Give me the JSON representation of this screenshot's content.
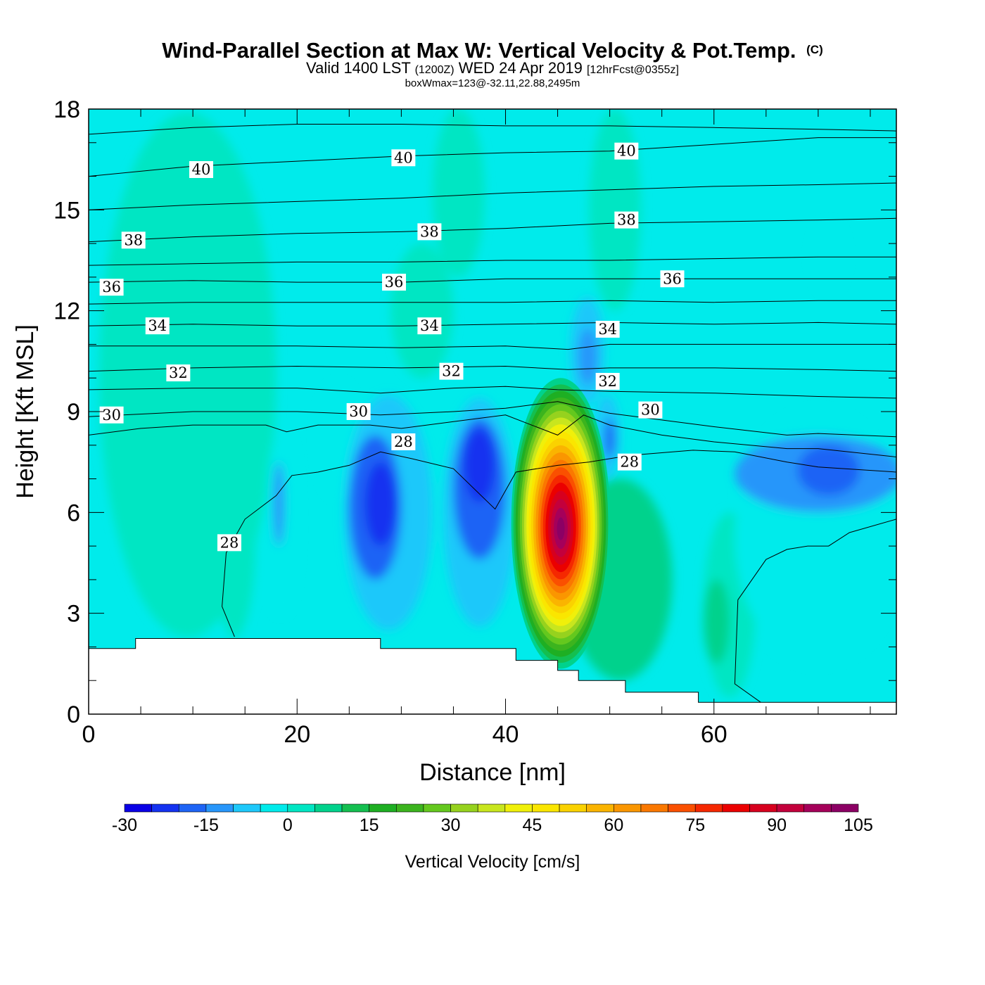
{
  "title": {
    "main": "Wind-Parallel Section at Max W: Vertical Velocity & Pot.Temp.",
    "copyright": "(C)",
    "valid_prefix": "Valid 1400 LST",
    "valid_utc": "(1200Z)",
    "valid_date": "WED 24 Apr 2019",
    "forecast": "[12hrFcst@0355z]",
    "box_wmax": "boxWmax=123@-32.11,22.88,2495m"
  },
  "chart_data": {
    "type": "heatmap",
    "xlabel": "Distance [nm]",
    "ylabel": "Height [Kft MSL]",
    "xlim": [
      0,
      77.5
    ],
    "ylim": [
      0,
      18
    ],
    "x_ticks": [
      0,
      20,
      40,
      60
    ],
    "y_ticks": [
      0,
      3,
      6,
      9,
      12,
      15,
      18
    ],
    "colorbar": {
      "label": "Vertical Velocity [cm/s]",
      "ticks": [
        -30,
        -15,
        0,
        15,
        30,
        45,
        60,
        75,
        90,
        105
      ],
      "levels": [
        -30,
        -25,
        -20,
        -15,
        -10,
        -5,
        0,
        5,
        10,
        15,
        20,
        25,
        30,
        35,
        40,
        45,
        50,
        55,
        60,
        65,
        70,
        75,
        80,
        85,
        90,
        95,
        100,
        105
      ],
      "colors": [
        "#0a00e6",
        "#1432f0",
        "#1e64f5",
        "#2896fa",
        "#1ec8fa",
        "#00ebeb",
        "#00e6c3",
        "#00d28c",
        "#14bf50",
        "#1eaf23",
        "#3cb41e",
        "#64c81e",
        "#96d21e",
        "#c8e61e",
        "#f0f00a",
        "#fae600",
        "#fad200",
        "#fab400",
        "#fa9600",
        "#fa7800",
        "#fa5000",
        "#f52800",
        "#eb0000",
        "#d7001e",
        "#c3003c",
        "#a5005a",
        "#8c0064"
      ]
    },
    "w_max": 123,
    "w_cells": [
      {
        "x": [
          1,
          18
        ],
        "y": [
          2.3,
          17.9
        ],
        "w": 3
      },
      {
        "x": [
          29,
          35
        ],
        "y": [
          10,
          14
        ],
        "w": 3
      },
      {
        "x": [
          33,
          38
        ],
        "y": [
          13,
          18
        ],
        "w": 3
      },
      {
        "x": [
          48,
          53
        ],
        "y": [
          12,
          18
        ],
        "w": 3
      },
      {
        "x": [
          12,
          16
        ],
        "y": [
          2.3,
          8
        ],
        "w": 2
      },
      {
        "x": [
          59,
          64
        ],
        "y": [
          0.5,
          6
        ],
        "w": 3
      },
      {
        "x": [
          59,
          61.5
        ],
        "y": [
          1.5,
          4
        ],
        "w": 6
      },
      {
        "x": [
          46,
          56
        ],
        "y": [
          1,
          7
        ],
        "w": 5
      },
      {
        "x": [
          48,
          52
        ],
        "y": [
          3,
          5.5
        ],
        "w": 9
      },
      {
        "x": [
          17,
          20
        ],
        "y": [
          3,
          8.5
        ],
        "w": -4
      },
      {
        "x": [
          17.7,
          18.8
        ],
        "y": [
          5,
          7.5
        ],
        "w": -11
      },
      {
        "x": [
          22,
          26
        ],
        "y": [
          6.5,
          9.8
        ],
        "w": -4
      },
      {
        "x": [
          24.5,
          33
        ],
        "y": [
          2.5,
          9.5
        ],
        "w": -10
      },
      {
        "x": [
          25,
          30
        ],
        "y": [
          4,
          8.3
        ],
        "w": -17
      },
      {
        "x": [
          26.5,
          29.5
        ],
        "y": [
          5,
          7.5
        ],
        "w": -25
      },
      {
        "x": [
          34,
          41
        ],
        "y": [
          2.6,
          9.4
        ],
        "w": -10
      },
      {
        "x": [
          35,
          40
        ],
        "y": [
          4.6,
          8.8
        ],
        "w": -17
      },
      {
        "x": [
          36,
          39
        ],
        "y": [
          6.3,
          8.5
        ],
        "w": -23
      },
      {
        "x": [
          46.2,
          49.5
        ],
        "y": [
          9.2,
          12.4
        ],
        "w": -8
      },
      {
        "x": [
          47,
          48.8
        ],
        "y": [
          9.8,
          11.5
        ],
        "w": -15
      },
      {
        "x": [
          48.5,
          51
        ],
        "y": [
          7,
          9.5
        ],
        "w": -10
      },
      {
        "x": [
          49.5,
          50.5
        ],
        "y": [
          7.6,
          8.8
        ],
        "w": -17
      },
      {
        "x": [
          62,
          78
        ],
        "y": [
          1.5,
          9
        ],
        "w": -5
      },
      {
        "x": [
          62,
          78
        ],
        "y": [
          6,
          8.3
        ],
        "w": -12
      },
      {
        "x": [
          68,
          74
        ],
        "y": [
          6.5,
          8
        ],
        "w": -18
      },
      {
        "x": [
          69.5,
          72.5
        ],
        "y": [
          12.6,
          14.6
        ],
        "w": -5
      },
      {
        "x": [
          41,
          50.5
        ],
        "y": [
          1.6,
          10
        ],
        "w": 123
      }
    ],
    "terrain_kft": [
      {
        "x": [
          0,
          4.5
        ],
        "top": 1.95
      },
      {
        "x": [
          4.5,
          28
        ],
        "top": 2.25
      },
      {
        "x": [
          28,
          41
        ],
        "top": 1.95
      },
      {
        "x": [
          41,
          45
        ],
        "top": 1.6
      },
      {
        "x": [
          45,
          47
        ],
        "top": 1.3
      },
      {
        "x": [
          47,
          51.5
        ],
        "top": 1.0
      },
      {
        "x": [
          51.5,
          58.5
        ],
        "top": 0.65
      },
      {
        "x": [
          58.5,
          77.5
        ],
        "top": 0.35
      }
    ],
    "theta_contours": [
      {
        "x": [
          0,
          10,
          20,
          30,
          40,
          50,
          60,
          70,
          77.5
        ],
        "y": [
          17.25,
          17.45,
          17.55,
          17.55,
          17.5,
          17.5,
          17.45,
          17.4,
          17.35
        ]
      },
      {
        "x": [
          0,
          10,
          20,
          30,
          40,
          50,
          60,
          70,
          77.5
        ],
        "y": [
          16.0,
          16.3,
          16.45,
          16.6,
          16.7,
          16.75,
          16.95,
          17.15,
          17.15
        ]
      },
      {
        "x": [
          0,
          10,
          20,
          30,
          40,
          50,
          60,
          70,
          77.5
        ],
        "y": [
          15.0,
          15.15,
          15.25,
          15.35,
          15.5,
          15.6,
          15.7,
          15.75,
          15.8
        ]
      },
      {
        "x": [
          0,
          10,
          20,
          30,
          40,
          50,
          60,
          70,
          77.5
        ],
        "y": [
          14.05,
          14.2,
          14.3,
          14.35,
          14.45,
          14.6,
          14.65,
          14.7,
          14.75
        ]
      },
      {
        "x": [
          0,
          10,
          20,
          30,
          40,
          50,
          60,
          70,
          77.5
        ],
        "y": [
          13.35,
          13.4,
          13.45,
          13.45,
          13.5,
          13.5,
          13.55,
          13.6,
          13.6
        ]
      },
      {
        "x": [
          0,
          10,
          20,
          30,
          40,
          50,
          60,
          70,
          77.5
        ],
        "y": [
          12.85,
          12.9,
          12.85,
          12.85,
          12.95,
          12.95,
          12.95,
          12.95,
          12.95
        ]
      },
      {
        "x": [
          0,
          10,
          20,
          30,
          40,
          50,
          60,
          70,
          77.5
        ],
        "y": [
          12.2,
          12.25,
          12.25,
          12.25,
          12.25,
          12.3,
          12.25,
          12.3,
          12.3
        ]
      },
      {
        "x": [
          0,
          10,
          20,
          30,
          40,
          50,
          60,
          70,
          77.5
        ],
        "y": [
          11.55,
          11.6,
          11.55,
          11.55,
          11.6,
          11.65,
          11.6,
          11.65,
          11.6
        ]
      },
      {
        "x": [
          0,
          10,
          20,
          30,
          40,
          46,
          50,
          60,
          70,
          77.5
        ],
        "y": [
          10.95,
          10.95,
          10.95,
          10.9,
          10.95,
          10.85,
          11.0,
          11.0,
          11.0,
          11.0
        ]
      },
      {
        "x": [
          0,
          10,
          20,
          30,
          40,
          46,
          50,
          60,
          70,
          77.5
        ],
        "y": [
          10.2,
          10.3,
          10.35,
          10.3,
          10.35,
          10.25,
          10.3,
          10.3,
          10.25,
          10.2
        ]
      },
      {
        "x": [
          0,
          10,
          20,
          28,
          35,
          40,
          45,
          50,
          60,
          70,
          77.5
        ],
        "y": [
          9.65,
          9.7,
          9.7,
          9.55,
          9.7,
          9.75,
          9.65,
          9.6,
          9.55,
          9.45,
          9.4
        ]
      },
      {
        "x": [
          0,
          10,
          20,
          28,
          35,
          40,
          45,
          50,
          60,
          67,
          70,
          77.5
        ],
        "y": [
          8.85,
          9.0,
          9.0,
          8.9,
          9.0,
          9.1,
          9.3,
          8.95,
          8.55,
          8.3,
          8.35,
          8.25
        ]
      },
      {
        "x": [
          0,
          5,
          10,
          17,
          19,
          22,
          27,
          30,
          35,
          40,
          45,
          47.5,
          50,
          55,
          60,
          67,
          70,
          77.5
        ],
        "y": [
          8.3,
          8.5,
          8.6,
          8.6,
          8.4,
          8.6,
          8.6,
          8.5,
          8.7,
          8.9,
          8.3,
          8.9,
          8.6,
          8.3,
          8.1,
          7.9,
          7.9,
          7.65
        ]
      },
      {
        "x": [
          14,
          12.8,
          13.2,
          15,
          18,
          19.5,
          22,
          25,
          28,
          31,
          35,
          39,
          41,
          45,
          48,
          52,
          58,
          62,
          67,
          70,
          77.5
        ],
        "y": [
          2.3,
          3.2,
          4.8,
          5.8,
          6.5,
          7.1,
          7.2,
          7.4,
          7.8,
          7.6,
          7.3,
          6.1,
          7.2,
          7.4,
          7.5,
          7.7,
          7.85,
          7.8,
          7.5,
          7.35,
          7.2
        ]
      },
      {
        "x": [
          64.5,
          62,
          62.3,
          65,
          67,
          69,
          71,
          73,
          77.5
        ],
        "y": [
          0.35,
          0.9,
          3.4,
          4.6,
          4.9,
          5.0,
          5.0,
          5.4,
          5.8
        ]
      }
    ],
    "contour_labels": [
      {
        "text": "40",
        "x": 10.8,
        "y": 16.2
      },
      {
        "text": "40",
        "x": 30.2,
        "y": 16.55
      },
      {
        "text": "40",
        "x": 51.6,
        "y": 16.75
      },
      {
        "text": "38",
        "x": 4.3,
        "y": 14.1
      },
      {
        "text": "38",
        "x": 32.7,
        "y": 14.35
      },
      {
        "text": "38",
        "x": 51.6,
        "y": 14.7
      },
      {
        "text": "36",
        "x": 2.2,
        "y": 12.7
      },
      {
        "text": "36",
        "x": 29.3,
        "y": 12.85
      },
      {
        "text": "36",
        "x": 56.0,
        "y": 12.95
      },
      {
        "text": "34",
        "x": 6.6,
        "y": 11.55
      },
      {
        "text": "34",
        "x": 32.7,
        "y": 11.55
      },
      {
        "text": "34",
        "x": 49.8,
        "y": 11.45
      },
      {
        "text": "32",
        "x": 8.6,
        "y": 10.15
      },
      {
        "text": "32",
        "x": 34.8,
        "y": 10.2
      },
      {
        "text": "32",
        "x": 49.8,
        "y": 9.9
      },
      {
        "text": "30",
        "x": 2.2,
        "y": 8.9
      },
      {
        "text": "30",
        "x": 25.9,
        "y": 9.0
      },
      {
        "text": "30",
        "x": 53.9,
        "y": 9.05
      },
      {
        "text": "28",
        "x": 30.2,
        "y": 8.1
      },
      {
        "text": "28",
        "x": 13.5,
        "y": 5.1
      },
      {
        "text": "28",
        "x": 51.9,
        "y": 7.5
      }
    ]
  }
}
